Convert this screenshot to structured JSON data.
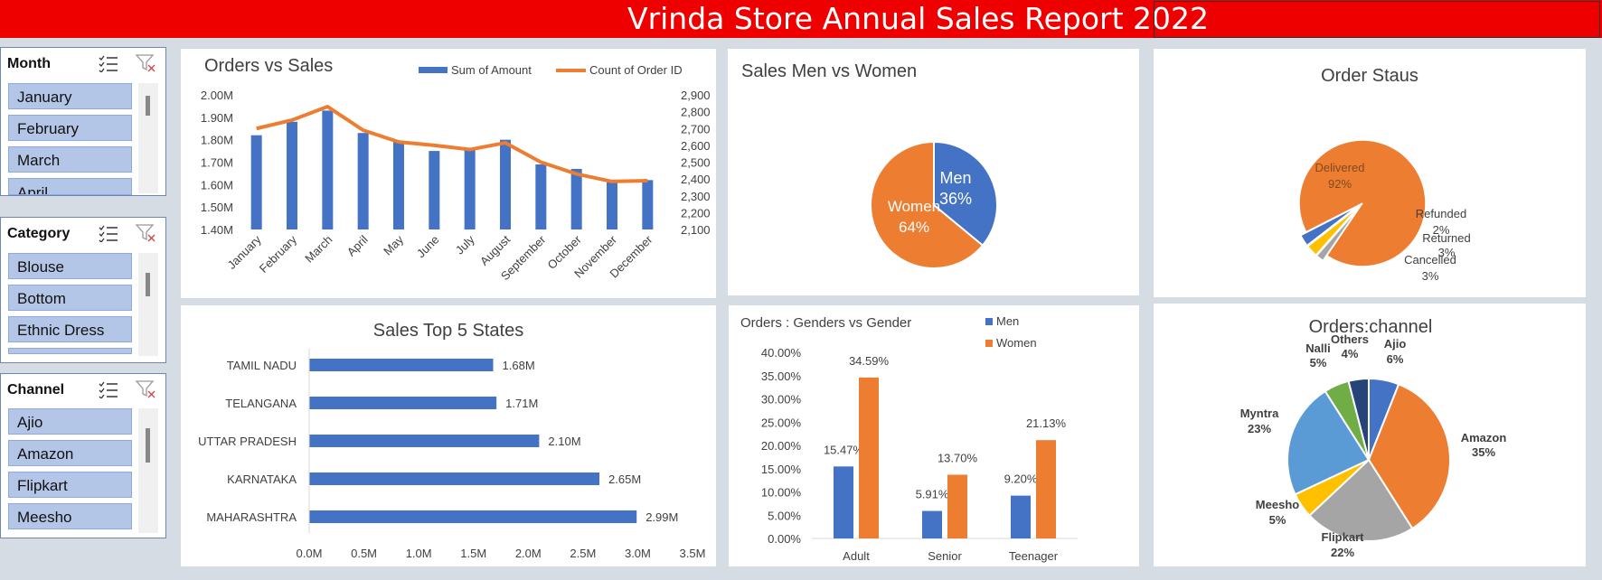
{
  "banner": {
    "title": "Vrinda Store Annual Sales Report 2022",
    "color": "#ee0000"
  },
  "slicers": {
    "month": {
      "title": "Month",
      "items": [
        "January",
        "February",
        "March",
        "April"
      ]
    },
    "category": {
      "title": "Category",
      "items": [
        "Blouse",
        "Bottom",
        "Ethnic Dress",
        ""
      ]
    },
    "channel": {
      "title": "Channel",
      "items": [
        "Ajio",
        "Amazon",
        "Flipkart",
        "Meesho"
      ]
    }
  },
  "colors": {
    "blue": "#4472c4",
    "orange": "#ed7d31",
    "gray": "#a5a5a5",
    "yellow": "#ffc000",
    "lightblue": "#5b9bd5",
    "green": "#70ad47",
    "navy": "#264478"
  },
  "chart_data": [
    {
      "id": "orders_vs_sales",
      "type": "bar",
      "title": "Orders vs Sales",
      "categories": [
        "January",
        "February",
        "March",
        "April",
        "May",
        "June",
        "July",
        "August",
        "September",
        "October",
        "November",
        "December"
      ],
      "series": [
        {
          "name": "Sum of Amount",
          "kind": "bar",
          "axis": "left",
          "values": [
            1.82,
            1.88,
            1.93,
            1.83,
            1.79,
            1.75,
            1.76,
            1.8,
            1.69,
            1.67,
            1.61,
            1.62
          ]
        },
        {
          "name": "Count of Order ID",
          "kind": "line",
          "axis": "right",
          "values": [
            2700,
            2750,
            2830,
            2690,
            2620,
            2600,
            2575,
            2615,
            2500,
            2430,
            2385,
            2390
          ]
        }
      ],
      "y_left": {
        "ticks": [
          "1.40M",
          "1.50M",
          "1.60M",
          "1.70M",
          "1.80M",
          "1.90M",
          "2.00M"
        ],
        "ylim": [
          1.4,
          2.0
        ]
      },
      "y_right": {
        "ticks": [
          "2,100",
          "2,200",
          "2,300",
          "2,400",
          "2,500",
          "2,600",
          "2,700",
          "2,800",
          "2,900"
        ],
        "ylim": [
          2100,
          2900
        ]
      },
      "legend": "top"
    },
    {
      "id": "sales_men_women",
      "type": "pie",
      "title": "Sales Men vs Women",
      "slices": [
        {
          "label": "Men",
          "pct": "36%",
          "value": 36
        },
        {
          "label": "Women",
          "pct": "64%",
          "value": 64
        }
      ]
    },
    {
      "id": "order_status",
      "type": "pie",
      "title": "Order Staus",
      "slices": [
        {
          "label": "Delivered",
          "pct": "92%",
          "value": 92
        },
        {
          "label": "Refunded",
          "pct": "2%",
          "value": 2
        },
        {
          "label": "Returned",
          "pct": "3%",
          "value": 3
        },
        {
          "label": "Cancelled",
          "pct": "3%",
          "value": 3
        }
      ]
    },
    {
      "id": "top5_states",
      "type": "bar",
      "orientation": "horizontal",
      "title": "Sales Top 5 States",
      "categories": [
        "TAMIL NADU",
        "TELANGANA",
        "UTTAR PRADESH",
        "KARNATAKA",
        "MAHARASHTRA"
      ],
      "values": [
        1.68,
        1.71,
        2.1,
        2.65,
        2.99
      ],
      "value_labels": [
        "1.68M",
        "1.71M",
        "2.10M",
        "2.65M",
        "2.99M"
      ],
      "x_ticks": [
        "0.0M",
        "0.5M",
        "1.0M",
        "1.5M",
        "2.0M",
        "2.5M",
        "3.0M",
        "3.5M"
      ],
      "xlim": [
        0,
        3.5
      ]
    },
    {
      "id": "orders_gender_age",
      "type": "bar",
      "title": "Orders : Genders vs Gender",
      "categories": [
        "Adult",
        "Senior",
        "Teenager"
      ],
      "series": [
        {
          "name": "Men",
          "values": [
            15.47,
            5.91,
            9.2
          ],
          "labels": [
            "15.47%",
            "5.91%",
            "9.20%"
          ]
        },
        {
          "name": "Women",
          "values": [
            34.59,
            13.7,
            21.13
          ],
          "labels": [
            "34.59%",
            "13.70%",
            "21.13%"
          ]
        }
      ],
      "y_ticks": [
        "0.00%",
        "5.00%",
        "10.00%",
        "15.00%",
        "20.00%",
        "25.00%",
        "30.00%",
        "35.00%",
        "40.00%"
      ],
      "ylim": [
        0,
        40
      ],
      "legend": "top-right"
    },
    {
      "id": "orders_channel",
      "type": "pie",
      "title": "Orders:channel",
      "slices": [
        {
          "label": "Ajio",
          "pct": "6%",
          "value": 6
        },
        {
          "label": "Amazon",
          "pct": "35%",
          "value": 35
        },
        {
          "label": "Flipkart",
          "pct": "22%",
          "value": 22
        },
        {
          "label": "Meesho",
          "pct": "5%",
          "value": 5
        },
        {
          "label": "Myntra",
          "pct": "23%",
          "value": 23
        },
        {
          "label": "Nalli",
          "pct": "5%",
          "value": 5
        },
        {
          "label": "Others",
          "pct": "4%",
          "value": 4
        }
      ]
    }
  ]
}
